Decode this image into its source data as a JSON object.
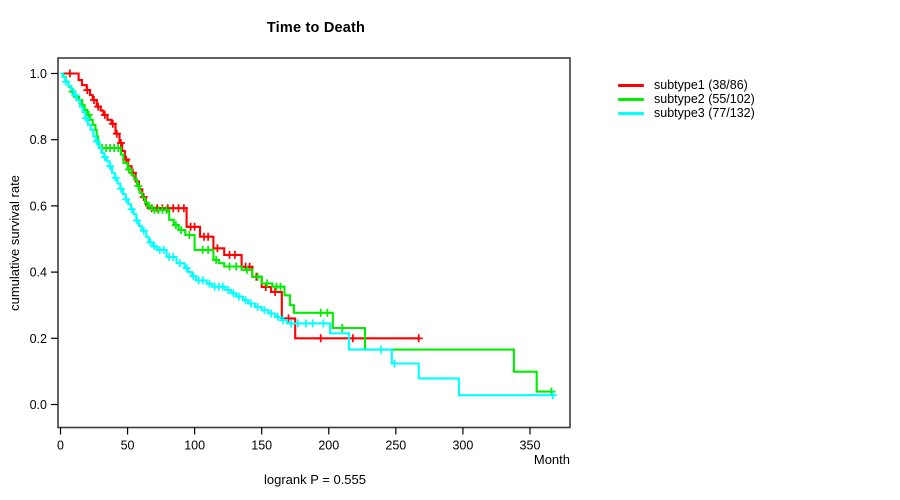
{
  "figure": {
    "title": "Time to Death",
    "y_axis_label": "cumulative survival rate",
    "x_axis_label": "Month",
    "footer": "logrank P = 0.555"
  },
  "legend": {
    "position": "right-outside",
    "items": [
      {
        "label": "subtype1 (38/86)",
        "color": "#ff0000"
      },
      {
        "label": "subtype2 (55/102)",
        "color": "#00ee00"
      },
      {
        "label": "subtype3 (77/132)",
        "color": "#00ffff"
      }
    ]
  },
  "chart_data": {
    "type": "line",
    "subtype": "kaplan-meier-step",
    "title": "Time to Death",
    "xlabel": "Month",
    "ylabel": "cumulative survival rate",
    "xlim": [
      0,
      380
    ],
    "ylim": [
      0,
      1
    ],
    "grid": false,
    "legend_position": "right-outside",
    "annotation": "logrank P = 0.555",
    "x_ticks": [
      0,
      50,
      100,
      150,
      200,
      250,
      300,
      350
    ],
    "x_tick_labels": [
      "0",
      "50",
      "100",
      "150",
      "200",
      "250",
      "300",
      "350"
    ],
    "y_ticks": [
      0.0,
      0.2,
      0.4,
      0.6,
      0.8,
      1.0
    ],
    "y_tick_labels": [
      "0.0",
      "0.2",
      "0.4",
      "0.6",
      "0.8",
      "1.0"
    ],
    "series": [
      {
        "name": "subtype1 (38/86)",
        "events": 38,
        "n": 86,
        "color": "#ff0000",
        "steps": [
          [
            0,
            1
          ],
          [
            13.5,
            0.98
          ],
          [
            16,
            0.965
          ],
          [
            19.5,
            0.95
          ],
          [
            22,
            0.935
          ],
          [
            24,
            0.92
          ],
          [
            27,
            0.9
          ],
          [
            30,
            0.888
          ],
          [
            32,
            0.875
          ],
          [
            35,
            0.86
          ],
          [
            38,
            0.848
          ],
          [
            41,
            0.818
          ],
          [
            44,
            0.79
          ],
          [
            46,
            0.766
          ],
          [
            48,
            0.74
          ],
          [
            50.5,
            0.72
          ],
          [
            53,
            0.7
          ],
          [
            56,
            0.674
          ],
          [
            58.5,
            0.65
          ],
          [
            61,
            0.627
          ],
          [
            63.5,
            0.605
          ],
          [
            65,
            0.593
          ],
          [
            94,
            0.537
          ],
          [
            104,
            0.507
          ],
          [
            114,
            0.472
          ],
          [
            122,
            0.452
          ],
          [
            135,
            0.416
          ],
          [
            143,
            0.386
          ],
          [
            150,
            0.355
          ],
          [
            157,
            0.34
          ],
          [
            165,
            0.26
          ],
          [
            175,
            0.2
          ],
          [
            268,
            0.2
          ]
        ],
        "censors": [
          [
            7,
            1
          ],
          [
            20,
            0.95
          ],
          [
            25,
            0.92
          ],
          [
            28,
            0.9
          ],
          [
            33,
            0.875
          ],
          [
            39,
            0.848
          ],
          [
            42,
            0.818
          ],
          [
            45,
            0.79
          ],
          [
            49,
            0.74
          ],
          [
            54,
            0.7
          ],
          [
            62,
            0.627
          ],
          [
            68,
            0.593
          ],
          [
            72,
            0.593
          ],
          [
            76,
            0.593
          ],
          [
            80,
            0.593
          ],
          [
            84,
            0.593
          ],
          [
            88,
            0.593
          ],
          [
            92,
            0.593
          ],
          [
            97,
            0.537
          ],
          [
            100,
            0.537
          ],
          [
            107,
            0.507
          ],
          [
            110,
            0.507
          ],
          [
            117,
            0.472
          ],
          [
            126,
            0.452
          ],
          [
            130,
            0.452
          ],
          [
            138,
            0.416
          ],
          [
            141,
            0.416
          ],
          [
            146,
            0.386
          ],
          [
            153,
            0.355
          ],
          [
            160,
            0.34
          ],
          [
            170,
            0.26
          ],
          [
            194,
            0.2
          ],
          [
            218,
            0.2
          ],
          [
            267,
            0.2
          ]
        ]
      },
      {
        "name": "subtype2 (55/102)",
        "events": 55,
        "n": 102,
        "color": "#00ee00",
        "steps": [
          [
            0,
            1
          ],
          [
            2,
            0.99
          ],
          [
            4,
            0.975
          ],
          [
            6,
            0.96
          ],
          [
            8,
            0.945
          ],
          [
            10,
            0.93
          ],
          [
            13,
            0.92
          ],
          [
            16,
            0.905
          ],
          [
            18,
            0.89
          ],
          [
            20,
            0.875
          ],
          [
            22,
            0.86
          ],
          [
            24,
            0.845
          ],
          [
            26,
            0.83
          ],
          [
            27,
            0.81
          ],
          [
            28,
            0.79
          ],
          [
            29,
            0.775
          ],
          [
            45,
            0.755
          ],
          [
            47,
            0.73
          ],
          [
            50,
            0.71
          ],
          [
            53,
            0.694
          ],
          [
            55,
            0.68
          ],
          [
            57,
            0.66
          ],
          [
            59,
            0.64
          ],
          [
            61,
            0.625
          ],
          [
            63,
            0.61
          ],
          [
            65,
            0.6
          ],
          [
            68,
            0.588
          ],
          [
            81,
            0.558
          ],
          [
            84.5,
            0.542
          ],
          [
            88,
            0.527
          ],
          [
            93,
            0.512
          ],
          [
            100,
            0.467
          ],
          [
            114,
            0.437
          ],
          [
            118,
            0.427
          ],
          [
            122,
            0.417
          ],
          [
            135,
            0.407
          ],
          [
            143,
            0.386
          ],
          [
            150,
            0.366
          ],
          [
            158,
            0.356
          ],
          [
            167,
            0.33
          ],
          [
            171,
            0.3
          ],
          [
            174,
            0.277
          ],
          [
            203,
            0.231
          ],
          [
            227,
            0.166
          ],
          [
            338,
            0.099
          ],
          [
            355,
            0.039
          ],
          [
            368,
            0.039
          ]
        ],
        "censors": [
          [
            9,
            0.945
          ],
          [
            14,
            0.92
          ],
          [
            21,
            0.875
          ],
          [
            31,
            0.775
          ],
          [
            34,
            0.775
          ],
          [
            37,
            0.775
          ],
          [
            40,
            0.775
          ],
          [
            43,
            0.775
          ],
          [
            51,
            0.71
          ],
          [
            58,
            0.66
          ],
          [
            66,
            0.6
          ],
          [
            70,
            0.588
          ],
          [
            73,
            0.588
          ],
          [
            76,
            0.588
          ],
          [
            79,
            0.588
          ],
          [
            86,
            0.542
          ],
          [
            90,
            0.527
          ],
          [
            96,
            0.512
          ],
          [
            106,
            0.467
          ],
          [
            110,
            0.467
          ],
          [
            116,
            0.437
          ],
          [
            126,
            0.417
          ],
          [
            131,
            0.417
          ],
          [
            139,
            0.407
          ],
          [
            147,
            0.386
          ],
          [
            154,
            0.366
          ],
          [
            161,
            0.356
          ],
          [
            164,
            0.356
          ],
          [
            194,
            0.277
          ],
          [
            199,
            0.277
          ],
          [
            210,
            0.231
          ],
          [
            366,
            0.039
          ]
        ]
      },
      {
        "name": "subtype3 (77/132)",
        "events": 77,
        "n": 132,
        "color": "#00ffff",
        "steps": [
          [
            0,
            1
          ],
          [
            1.5,
            0.99
          ],
          [
            3.5,
            0.975
          ],
          [
            6,
            0.962
          ],
          [
            8,
            0.95
          ],
          [
            10,
            0.935
          ],
          [
            12,
            0.92
          ],
          [
            14.5,
            0.9
          ],
          [
            16.5,
            0.884
          ],
          [
            18.5,
            0.865
          ],
          [
            20.5,
            0.845
          ],
          [
            22.5,
            0.83
          ],
          [
            24.5,
            0.81
          ],
          [
            26.5,
            0.795
          ],
          [
            28.5,
            0.775
          ],
          [
            30.5,
            0.76
          ],
          [
            32.5,
            0.747
          ],
          [
            34.5,
            0.735
          ],
          [
            36.5,
            0.72
          ],
          [
            38.5,
            0.7
          ],
          [
            40.5,
            0.685
          ],
          [
            42.5,
            0.668
          ],
          [
            44.5,
            0.652
          ],
          [
            46.5,
            0.636
          ],
          [
            48.5,
            0.62
          ],
          [
            50.5,
            0.605
          ],
          [
            52.5,
            0.59
          ],
          [
            54.5,
            0.575
          ],
          [
            56.5,
            0.556
          ],
          [
            58.5,
            0.54
          ],
          [
            60.5,
            0.525
          ],
          [
            64,
            0.505
          ],
          [
            66,
            0.49
          ],
          [
            69,
            0.478
          ],
          [
            72,
            0.467
          ],
          [
            79,
            0.446
          ],
          [
            86.5,
            0.427
          ],
          [
            92.5,
            0.412
          ],
          [
            95,
            0.4
          ],
          [
            98,
            0.388
          ],
          [
            101,
            0.375
          ],
          [
            109,
            0.365
          ],
          [
            113,
            0.356
          ],
          [
            123,
            0.346
          ],
          [
            127,
            0.336
          ],
          [
            131,
            0.326
          ],
          [
            136,
            0.315
          ],
          [
            140,
            0.305
          ],
          [
            145,
            0.295
          ],
          [
            150,
            0.285
          ],
          [
            155,
            0.275
          ],
          [
            160,
            0.265
          ],
          [
            164,
            0.255
          ],
          [
            169,
            0.245
          ],
          [
            201,
            0.215
          ],
          [
            215,
            0.166
          ],
          [
            247,
            0.124
          ],
          [
            267,
            0.079
          ],
          [
            297,
            0.028
          ],
          [
            369,
            0.028
          ]
        ],
        "censors": [
          [
            4,
            0.975
          ],
          [
            11,
            0.935
          ],
          [
            19,
            0.865
          ],
          [
            27,
            0.795
          ],
          [
            33,
            0.747
          ],
          [
            37,
            0.72
          ],
          [
            41,
            0.685
          ],
          [
            45,
            0.652
          ],
          [
            49,
            0.62
          ],
          [
            53,
            0.59
          ],
          [
            57,
            0.556
          ],
          [
            62,
            0.525
          ],
          [
            67,
            0.49
          ],
          [
            70,
            0.478
          ],
          [
            74,
            0.467
          ],
          [
            77,
            0.467
          ],
          [
            81,
            0.446
          ],
          [
            84,
            0.446
          ],
          [
            89,
            0.427
          ],
          [
            94,
            0.412
          ],
          [
            99,
            0.388
          ],
          [
            103,
            0.375
          ],
          [
            106,
            0.375
          ],
          [
            111,
            0.365
          ],
          [
            115,
            0.356
          ],
          [
            118,
            0.356
          ],
          [
            121,
            0.356
          ],
          [
            125,
            0.346
          ],
          [
            129,
            0.336
          ],
          [
            133,
            0.326
          ],
          [
            138,
            0.315
          ],
          [
            142,
            0.305
          ],
          [
            147,
            0.295
          ],
          [
            152,
            0.285
          ],
          [
            157,
            0.275
          ],
          [
            162,
            0.265
          ],
          [
            166,
            0.255
          ],
          [
            172,
            0.245
          ],
          [
            177,
            0.245
          ],
          [
            183,
            0.245
          ],
          [
            188,
            0.245
          ],
          [
            196,
            0.245
          ],
          [
            239,
            0.166
          ],
          [
            249,
            0.124
          ],
          [
            367,
            0.028
          ]
        ]
      }
    ]
  }
}
